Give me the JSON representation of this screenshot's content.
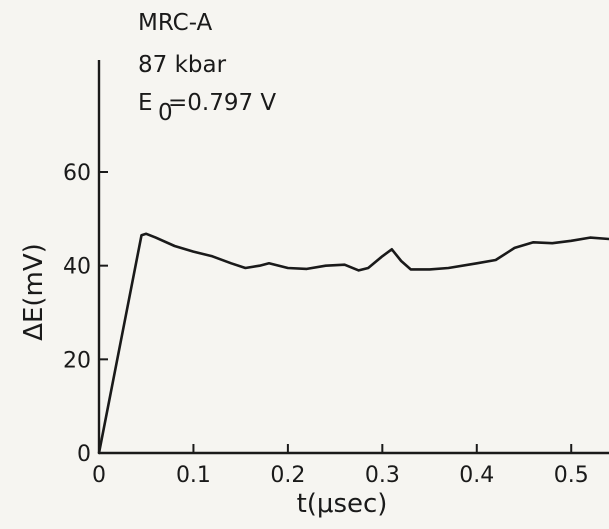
{
  "chart_data": {
    "type": "line",
    "annotations": [
      "MRC-A",
      "87 kbar",
      "E",
      "0",
      "=0.797 V"
    ],
    "xlabel": "t(μsec)",
    "ylabel": "ΔE(mV)",
    "xlim": [
      0,
      0.54
    ],
    "ylim": [
      0,
      80
    ],
    "x_ticks": [
      0,
      0.1,
      0.2,
      0.3,
      0.4,
      0.5
    ],
    "x_tick_labels": [
      "0",
      "0.1",
      "0.2",
      "0.3",
      "0.4",
      "0.5"
    ],
    "y_ticks": [
      0,
      20,
      40,
      60
    ],
    "y_tick_labels": [
      "0",
      "20",
      "40",
      "60"
    ],
    "grid": false,
    "line_color": "#1a1a1a",
    "series": [
      {
        "x": [
          0,
          0.045,
          0.05,
          0.06,
          0.08,
          0.1,
          0.12,
          0.14,
          0.155,
          0.17,
          0.18,
          0.2,
          0.22,
          0.24,
          0.26,
          0.275,
          0.285,
          0.3,
          0.31,
          0.32,
          0.33,
          0.35,
          0.37,
          0.4,
          0.42,
          0.44,
          0.46,
          0.48,
          0.5,
          0.52,
          0.54
        ],
        "y": [
          0,
          46.5,
          46.8,
          46,
          44.2,
          43,
          42,
          40.5,
          39.5,
          40,
          40.5,
          39.5,
          39.3,
          40,
          40.2,
          39,
          39.5,
          42,
          43.5,
          41,
          39.2,
          39.2,
          39.5,
          40.5,
          41.2,
          43.8,
          45,
          44.8,
          45.3,
          46,
          45.7
        ]
      }
    ]
  }
}
